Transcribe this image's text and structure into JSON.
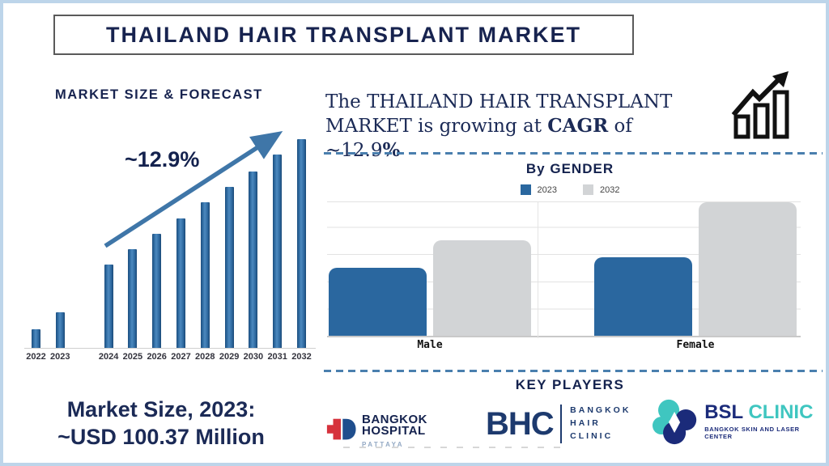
{
  "title": "THAILAND HAIR TRANSPLANT MARKET",
  "forecast_section": {
    "heading": "MARKET SIZE & FORECAST",
    "cagr_annotation": "~12.9%"
  },
  "growth_statement": {
    "part1": "The THAILAND HAIR TRANSPLANT MARKET is growing at ",
    "bold1": "CAGR",
    "part2": " of ~12.9",
    "bold2": "%"
  },
  "gender_section": {
    "heading": "By GENDER"
  },
  "key_players_section": {
    "heading": "KEY PLAYERS",
    "players": [
      {
        "name": "Bangkok Hospital Pattaya",
        "line1": "BANGKOK",
        "line2": "HOSPITAL",
        "subtitle": "PATTAYA"
      },
      {
        "name": "Bangkok Hair Clinic",
        "abbr": "BHC",
        "stack1": "BANGKOK",
        "stack2": "HAIR",
        "stack3": "CLINIC"
      },
      {
        "name": "BSL Clinic",
        "name_navy": "BSL",
        "name_teal": "CLINIC",
        "subtitle": "BANGKOK SKIN AND LASER CENTER"
      }
    ]
  },
  "market_size_note": {
    "line1": "Market Size, 2023:",
    "line2": "~USD 100.37 Million"
  },
  "colors": {
    "navy_text": "#17234f",
    "bar_blue": "#2e6ba3",
    "bar_gray": "#d2d4d6",
    "arrow_blue": "#3f76a8",
    "dashed_line": "#4a7fae",
    "page_border": "#bdd5ea",
    "bsl_teal": "#3fc6c0",
    "bsl_navy": "#1b2b7a",
    "bh_red": "#d6323c",
    "bh_blue": "#1f4e8d"
  },
  "chart_data": [
    {
      "type": "bar",
      "title": "MARKET SIZE & FORECAST",
      "categories": [
        "2022",
        "2023",
        "2024",
        "2025",
        "2026",
        "2027",
        "2028",
        "2029",
        "2030",
        "2031",
        "2032"
      ],
      "values": [
        23,
        44,
        103,
        122,
        141,
        160,
        180,
        199,
        218,
        239,
        258
      ],
      "values_note": "no y-axis shown; values are relative bar heights estimated in pixels",
      "known_point": {
        "year": 2023,
        "value_usd_million": 100.37
      },
      "cagr_percent": 12.9,
      "annotation": "~12.9%",
      "xlabel": "",
      "ylabel": "",
      "grid": false,
      "legend": false,
      "bar_color": "#2e6ba3"
    },
    {
      "type": "bar",
      "title": "By GENDER",
      "categories": [
        "Male",
        "Female"
      ],
      "series": [
        {
          "name": "2023",
          "color": "#2a679f",
          "values": [
            2.5,
            2.9
          ]
        },
        {
          "name": "2032",
          "color": "#d2d4d6",
          "values": [
            3.5,
            4.9
          ]
        }
      ],
      "values_note": "no y-axis labels; values estimated in gridline units",
      "ylim": [
        0,
        5
      ],
      "grid": true,
      "legend_position": "top"
    }
  ]
}
